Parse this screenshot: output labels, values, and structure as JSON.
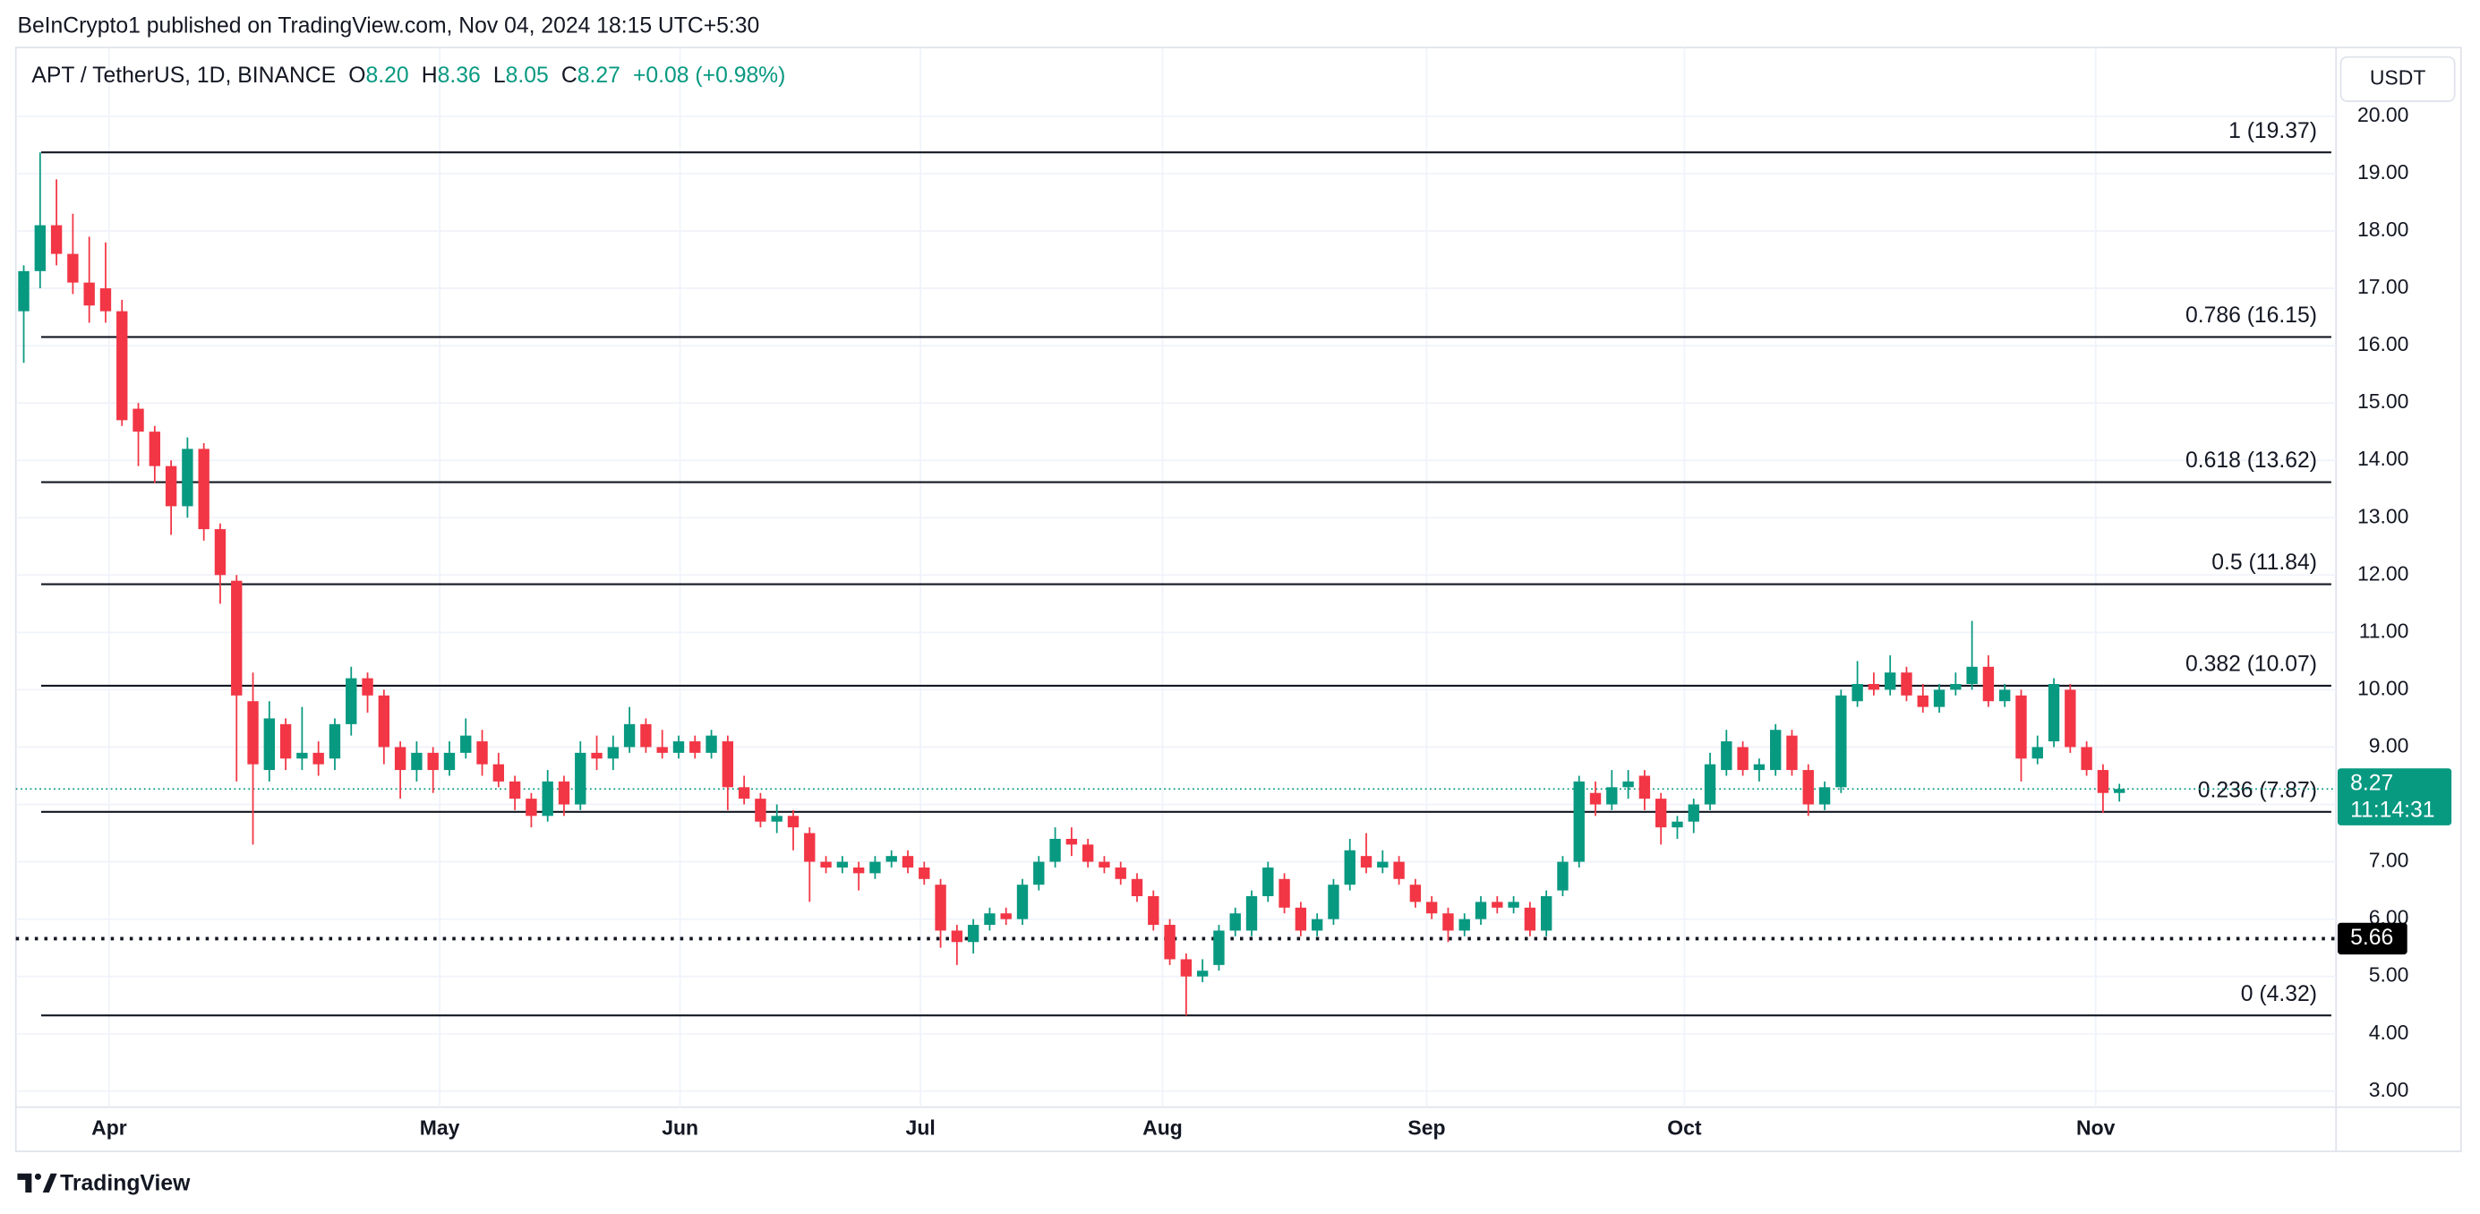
{
  "header": {
    "attribution": "BeInCrypto1 published on TradingView.com, Nov 04, 2024 18:15 UTC+5:30",
    "symbol": "APT / TetherUS, 1D, BINANCE",
    "ohlc": [
      {
        "key": "O",
        "value": "8.20"
      },
      {
        "key": "H",
        "value": "8.36"
      },
      {
        "key": "L",
        "value": "8.05"
      },
      {
        "key": "C",
        "value": "8.27"
      }
    ],
    "change": "+0.08 (+0.98%)",
    "currency": "USDT"
  },
  "footer": {
    "brand": "TradingView"
  },
  "chart_data": {
    "type": "candlestick",
    "up_color": "#089981",
    "down_color": "#f23645",
    "grid": true,
    "ylim": [
      1.95,
      21.2
    ],
    "yticks": [
      {
        "value": 3,
        "label": "3.00"
      },
      {
        "value": 4,
        "label": "4.00"
      },
      {
        "value": 5,
        "label": "5.00"
      },
      {
        "value": 6,
        "label": "6.00"
      },
      {
        "value": 7,
        "label": "7.00"
      },
      {
        "value": 8,
        "label": "8.00"
      },
      {
        "value": 9,
        "label": "9.00"
      },
      {
        "value": 10,
        "label": "10.00"
      },
      {
        "value": 11,
        "label": "11.00"
      },
      {
        "value": 12,
        "label": "12.00"
      },
      {
        "value": 13,
        "label": "13.00"
      },
      {
        "value": 14,
        "label": "14.00"
      },
      {
        "value": 15,
        "label": "15.00"
      },
      {
        "value": 16,
        "label": "16.00"
      },
      {
        "value": 17,
        "label": "17.00"
      },
      {
        "value": 18,
        "label": "18.00"
      },
      {
        "value": 19,
        "label": "19.00"
      },
      {
        "value": 20,
        "label": "20.00"
      }
    ],
    "xtick_labels": [
      "Apr",
      "May",
      "Jun",
      "Jul",
      "Aug",
      "Sep",
      "Oct",
      "Nov"
    ],
    "fib_levels": [
      {
        "value": 19.37,
        "label": "1 (19.37)"
      },
      {
        "value": 16.15,
        "label": "0.786 (16.15)"
      },
      {
        "value": 13.62,
        "label": "0.618 (13.62)"
      },
      {
        "value": 11.84,
        "label": "0.5 (11.84)"
      },
      {
        "value": 10.07,
        "label": "0.382 (10.07)"
      },
      {
        "value": 7.87,
        "label": "0.236 (7.87)"
      },
      {
        "value": 4.32,
        "label": "0 (4.32)"
      }
    ],
    "last_price": {
      "value": 8.27,
      "label": "8.27",
      "countdown": "11:14:31"
    },
    "support": {
      "value": 5.66,
      "label": "5.66"
    },
    "ohlc": [
      [
        16.6,
        17.4,
        15.7,
        17.3
      ],
      [
        17.3,
        19.37,
        17.0,
        18.1
      ],
      [
        18.1,
        18.9,
        17.4,
        17.6
      ],
      [
        17.6,
        18.3,
        16.9,
        17.1
      ],
      [
        17.1,
        17.9,
        16.4,
        16.7
      ],
      [
        17.0,
        17.8,
        16.4,
        16.6
      ],
      [
        16.6,
        16.8,
        14.6,
        14.7
      ],
      [
        14.9,
        15.0,
        13.9,
        14.5
      ],
      [
        14.5,
        14.6,
        13.6,
        13.9
      ],
      [
        13.9,
        14.0,
        12.7,
        13.2
      ],
      [
        13.2,
        14.4,
        13.0,
        14.2
      ],
      [
        14.2,
        14.3,
        12.6,
        12.8
      ],
      [
        12.8,
        12.9,
        11.5,
        12.0
      ],
      [
        11.9,
        12.0,
        8.4,
        9.9
      ],
      [
        9.8,
        10.3,
        7.3,
        8.7
      ],
      [
        8.6,
        9.8,
        8.4,
        9.5
      ],
      [
        9.4,
        9.5,
        8.6,
        8.8
      ],
      [
        8.8,
        9.7,
        8.6,
        8.9
      ],
      [
        8.9,
        9.1,
        8.5,
        8.7
      ],
      [
        8.8,
        9.5,
        8.6,
        9.4
      ],
      [
        9.4,
        10.4,
        9.2,
        10.2
      ],
      [
        10.2,
        10.3,
        9.6,
        9.9
      ],
      [
        9.9,
        10.0,
        8.7,
        9.0
      ],
      [
        9.0,
        9.1,
        8.1,
        8.6
      ],
      [
        8.6,
        9.1,
        8.4,
        8.9
      ],
      [
        8.9,
        9.0,
        8.2,
        8.6
      ],
      [
        8.6,
        9.1,
        8.5,
        8.9
      ],
      [
        8.9,
        9.5,
        8.8,
        9.2
      ],
      [
        9.1,
        9.3,
        8.5,
        8.7
      ],
      [
        8.7,
        8.9,
        8.3,
        8.4
      ],
      [
        8.4,
        8.5,
        7.9,
        8.1
      ],
      [
        8.1,
        8.2,
        7.6,
        7.8
      ],
      [
        7.8,
        8.6,
        7.7,
        8.4
      ],
      [
        8.4,
        8.5,
        7.8,
        8.0
      ],
      [
        8.0,
        9.1,
        7.9,
        8.9
      ],
      [
        8.9,
        9.2,
        8.6,
        8.8
      ],
      [
        8.8,
        9.2,
        8.6,
        9.0
      ],
      [
        9.0,
        9.7,
        8.9,
        9.4
      ],
      [
        9.4,
        9.5,
        8.9,
        9.0
      ],
      [
        9.0,
        9.3,
        8.8,
        8.9
      ],
      [
        8.9,
        9.2,
        8.8,
        9.1
      ],
      [
        9.1,
        9.2,
        8.8,
        8.9
      ],
      [
        8.9,
        9.3,
        8.8,
        9.2
      ],
      [
        9.1,
        9.2,
        7.9,
        8.3
      ],
      [
        8.3,
        8.5,
        8.0,
        8.1
      ],
      [
        8.1,
        8.2,
        7.6,
        7.7
      ],
      [
        7.7,
        8.0,
        7.5,
        7.8
      ],
      [
        7.8,
        7.9,
        7.2,
        7.6
      ],
      [
        7.5,
        7.6,
        6.3,
        7.0
      ],
      [
        7.0,
        7.1,
        6.8,
        6.9
      ],
      [
        6.9,
        7.1,
        6.8,
        7.0
      ],
      [
        6.9,
        7.0,
        6.5,
        6.8
      ],
      [
        6.8,
        7.1,
        6.7,
        7.0
      ],
      [
        7.0,
        7.2,
        6.9,
        7.1
      ],
      [
        7.1,
        7.2,
        6.8,
        6.9
      ],
      [
        6.9,
        7.0,
        6.6,
        6.7
      ],
      [
        6.6,
        6.7,
        5.5,
        5.8
      ],
      [
        5.8,
        5.9,
        5.2,
        5.6
      ],
      [
        5.6,
        6.0,
        5.4,
        5.9
      ],
      [
        5.9,
        6.2,
        5.8,
        6.1
      ],
      [
        6.1,
        6.2,
        5.9,
        6.0
      ],
      [
        6.0,
        6.7,
        5.9,
        6.6
      ],
      [
        6.6,
        7.1,
        6.5,
        7.0
      ],
      [
        7.0,
        7.6,
        6.9,
        7.4
      ],
      [
        7.4,
        7.6,
        7.1,
        7.3
      ],
      [
        7.3,
        7.4,
        6.9,
        7.0
      ],
      [
        7.0,
        7.1,
        6.8,
        6.9
      ],
      [
        6.9,
        7.0,
        6.6,
        6.7
      ],
      [
        6.7,
        6.8,
        6.3,
        6.4
      ],
      [
        6.4,
        6.5,
        5.8,
        5.9
      ],
      [
        5.9,
        6.0,
        5.2,
        5.3
      ],
      [
        5.3,
        5.4,
        4.32,
        5.0
      ],
      [
        5.0,
        5.3,
        4.9,
        5.1
      ],
      [
        5.2,
        5.9,
        5.1,
        5.8
      ],
      [
        5.8,
        6.2,
        5.7,
        6.1
      ],
      [
        5.8,
        6.5,
        5.7,
        6.4
      ],
      [
        6.4,
        7.0,
        6.3,
        6.9
      ],
      [
        6.7,
        6.8,
        6.1,
        6.2
      ],
      [
        6.2,
        6.3,
        5.7,
        5.8
      ],
      [
        5.8,
        6.1,
        5.7,
        6.0
      ],
      [
        6.0,
        6.7,
        5.9,
        6.6
      ],
      [
        6.6,
        7.4,
        6.5,
        7.2
      ],
      [
        7.1,
        7.5,
        6.8,
        6.9
      ],
      [
        6.9,
        7.2,
        6.8,
        7.0
      ],
      [
        7.0,
        7.1,
        6.6,
        6.7
      ],
      [
        6.6,
        6.7,
        6.2,
        6.3
      ],
      [
        6.3,
        6.4,
        6.0,
        6.1
      ],
      [
        6.1,
        6.2,
        5.6,
        5.8
      ],
      [
        5.8,
        6.1,
        5.7,
        6.0
      ],
      [
        6.0,
        6.4,
        5.9,
        6.3
      ],
      [
        6.3,
        6.4,
        6.1,
        6.2
      ],
      [
        6.2,
        6.4,
        6.1,
        6.3
      ],
      [
        6.2,
        6.3,
        5.7,
        5.8
      ],
      [
        5.8,
        6.5,
        5.7,
        6.4
      ],
      [
        6.5,
        7.1,
        6.4,
        7.0
      ],
      [
        7.0,
        8.5,
        6.9,
        8.4
      ],
      [
        8.2,
        8.4,
        7.8,
        8.0
      ],
      [
        8.0,
        8.6,
        7.9,
        8.3
      ],
      [
        8.3,
        8.6,
        8.1,
        8.4
      ],
      [
        8.5,
        8.6,
        7.9,
        8.1
      ],
      [
        8.1,
        8.2,
        7.3,
        7.6
      ],
      [
        7.6,
        7.8,
        7.4,
        7.7
      ],
      [
        7.7,
        8.1,
        7.5,
        8.0
      ],
      [
        8.0,
        8.9,
        7.9,
        8.7
      ],
      [
        8.6,
        9.3,
        8.5,
        9.1
      ],
      [
        9.0,
        9.1,
        8.5,
        8.6
      ],
      [
        8.6,
        8.8,
        8.4,
        8.7
      ],
      [
        8.6,
        9.4,
        8.5,
        9.3
      ],
      [
        9.2,
        9.3,
        8.5,
        8.6
      ],
      [
        8.6,
        8.7,
        7.8,
        8.0
      ],
      [
        8.0,
        8.4,
        7.9,
        8.3
      ],
      [
        8.3,
        10.0,
        8.2,
        9.9
      ],
      [
        9.8,
        10.5,
        9.7,
        10.1
      ],
      [
        10.1,
        10.3,
        9.9,
        10.0
      ],
      [
        10.0,
        10.6,
        9.9,
        10.3
      ],
      [
        10.3,
        10.4,
        9.8,
        9.9
      ],
      [
        9.9,
        10.1,
        9.6,
        9.7
      ],
      [
        9.7,
        10.1,
        9.6,
        10.0
      ],
      [
        10.0,
        10.3,
        9.9,
        10.1
      ],
      [
        10.1,
        11.2,
        10.0,
        10.4
      ],
      [
        10.4,
        10.6,
        9.7,
        9.8
      ],
      [
        9.8,
        10.1,
        9.7,
        10.0
      ],
      [
        9.9,
        10.0,
        8.4,
        8.8
      ],
      [
        8.8,
        9.2,
        8.7,
        9.0
      ],
      [
        9.1,
        10.2,
        9.0,
        10.1
      ],
      [
        10.0,
        10.1,
        8.9,
        9.0
      ],
      [
        9.0,
        9.1,
        8.5,
        8.6
      ],
      [
        8.6,
        8.7,
        7.85,
        8.2
      ],
      [
        8.2,
        8.36,
        8.05,
        8.27
      ]
    ]
  }
}
